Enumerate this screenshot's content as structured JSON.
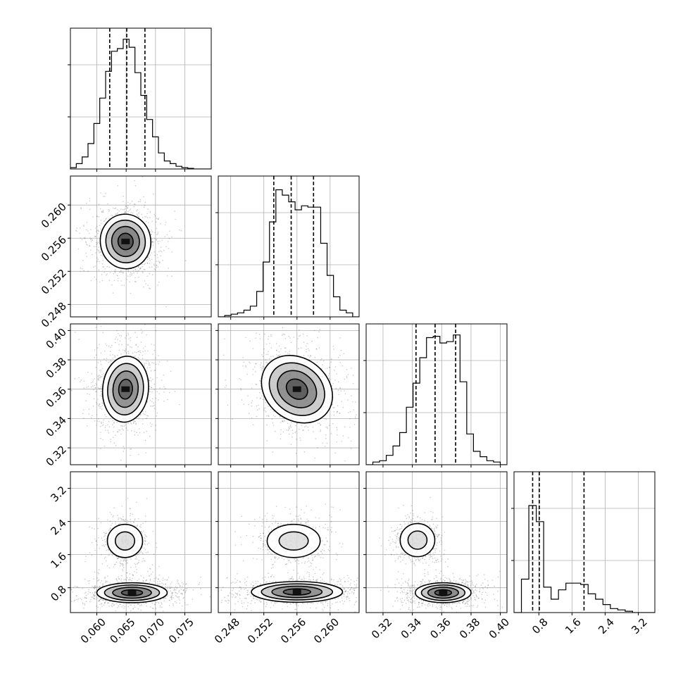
{
  "chart_data": {
    "type": "corner",
    "n_params": 4,
    "parameters": [
      {
        "ticks": [
          0.06,
          0.065,
          0.07,
          0.075
        ],
        "tick_labels": [
          "0.060",
          "0.065",
          "0.070",
          "0.075"
        ],
        "range": [
          0.0555,
          0.0795
        ],
        "quantiles": [
          0.0622,
          0.0651,
          0.0682
        ]
      },
      {
        "ticks": [
          0.248,
          0.252,
          0.256,
          0.26
        ],
        "tick_labels": [
          "0.248",
          "0.252",
          "0.256",
          "0.260"
        ],
        "range": [
          0.2465,
          0.2635
        ],
        "quantiles": [
          0.2532,
          0.2553,
          0.258
        ]
      },
      {
        "ticks": [
          0.32,
          0.34,
          0.36,
          0.38,
          0.4
        ],
        "tick_labels": [
          "0.32",
          "0.34",
          "0.36",
          "0.38",
          "0.40"
        ],
        "range": [
          0.3085,
          0.4045
        ],
        "quantiles": [
          0.3425,
          0.3555,
          0.3695
        ]
      },
      {
        "ticks": [
          0.8,
          1.6,
          2.4,
          3.2
        ],
        "tick_labels": [
          "0.8",
          "1.6",
          "2.4",
          "3.2"
        ],
        "range": [
          0.2,
          3.6
        ],
        "quantiles": [
          0.65,
          0.81,
          1.89
        ]
      }
    ],
    "histograms": [
      {
        "param": 0,
        "counts": [
          0.01,
          0.04,
          0.09,
          0.19,
          0.34,
          0.53,
          0.73,
          0.88,
          0.9,
          0.97,
          0.91,
          0.72,
          0.55,
          0.37,
          0.24,
          0.12,
          0.06,
          0.04,
          0.02,
          0.01,
          0.005,
          0,
          0,
          0
        ]
      },
      {
        "param": 1,
        "counts": [
          0.0,
          0.01,
          0.02,
          0.03,
          0.05,
          0.08,
          0.19,
          0.41,
          0.71,
          0.95,
          0.91,
          0.86,
          0.8,
          0.83,
          0.82,
          0.82,
          0.55,
          0.31,
          0.15,
          0.05,
          0.03,
          0.0
        ]
      },
      {
        "param": 2,
        "counts": [
          0.0,
          0.02,
          0.03,
          0.07,
          0.14,
          0.24,
          0.43,
          0.61,
          0.8,
          0.95,
          0.96,
          0.91,
          0.92,
          0.97,
          0.62,
          0.23,
          0.1,
          0.06,
          0.03,
          0.02,
          0.0
        ]
      },
      {
        "param": 3,
        "counts": [
          0.0,
          0.25,
          0.8,
          0.68,
          0.19,
          0.1,
          0.17,
          0.22,
          0.22,
          0.21,
          0.14,
          0.1,
          0.06,
          0.03,
          0.02,
          0.01,
          0.0,
          0.0,
          0.0
        ]
      }
    ],
    "grid": true,
    "contours": [
      {
        "x": 0,
        "y": 1,
        "blobs": [
          {
            "cx": 0.0649,
            "cy": 0.2556,
            "rx": 0.0043,
            "ry": 0.0033,
            "angle": -8,
            "levels": 4,
            "shade": 0.75
          }
        ]
      },
      {
        "x": 0,
        "y": 2,
        "blobs": [
          {
            "cx": 0.0649,
            "cy": 0.36,
            "rx": 0.0039,
            "ry": 0.0225,
            "angle": 5,
            "levels": 4,
            "shade": 0.6
          }
        ]
      },
      {
        "x": 1,
        "y": 2,
        "blobs": [
          {
            "cx": 0.256,
            "cy": 0.36,
            "rx": 0.0046,
            "ry": 0.021,
            "angle": 38,
            "levels": 4,
            "shade": 0.65
          }
        ]
      },
      {
        "x": 0,
        "y": 3,
        "blobs": [
          {
            "cx": 0.0648,
            "cy": 1.93,
            "rx": 0.003,
            "ry": 0.4,
            "angle": 0,
            "levels": 2,
            "shade": 0.1
          },
          {
            "cx": 0.066,
            "cy": 0.68,
            "rx": 0.006,
            "ry": 0.24,
            "angle": 0,
            "levels": 4,
            "shade": 0.7
          }
        ]
      },
      {
        "x": 1,
        "y": 3,
        "blobs": [
          {
            "cx": 0.2556,
            "cy": 1.93,
            "rx": 0.0032,
            "ry": 0.4,
            "angle": 0,
            "levels": 2,
            "shade": 0.1
          },
          {
            "cx": 0.256,
            "cy": 0.7,
            "rx": 0.0055,
            "ry": 0.25,
            "angle": 0,
            "levels": 4,
            "shade": 0.6
          }
        ]
      },
      {
        "x": 2,
        "y": 3,
        "blobs": [
          {
            "cx": 0.3435,
            "cy": 1.95,
            "rx": 0.0118,
            "ry": 0.4,
            "angle": 0,
            "levels": 2,
            "shade": 0.1
          },
          {
            "cx": 0.361,
            "cy": 0.68,
            "rx": 0.019,
            "ry": 0.24,
            "angle": 0,
            "levels": 4,
            "shade": 0.7
          }
        ]
      }
    ],
    "colors": {
      "line": "#000000",
      "grid": "#b0b0b0",
      "scatter": "#444444"
    }
  }
}
